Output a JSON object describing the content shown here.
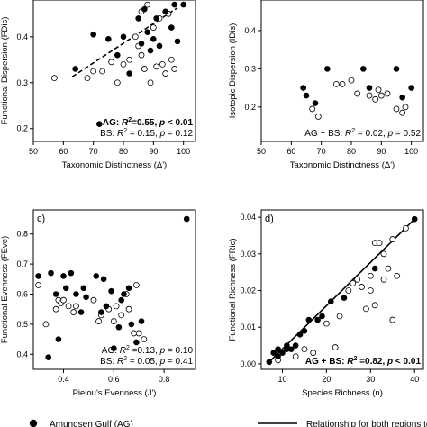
{
  "panels": [
    {
      "id": "a",
      "letter": "",
      "type": "scatter",
      "xlabel": "Taxonomic Distinctness (Δ')",
      "ylabel": "Functional Dispersion (FDis)",
      "xlim": [
        50,
        104
      ],
      "ylim": [
        0.172,
        0.48
      ],
      "xticks": [
        50,
        60,
        70,
        80,
        90,
        100
      ],
      "yticks": [
        0.2,
        0.3,
        0.4
      ],
      "ytick_labels": [
        "0.2",
        "0.3",
        "0.4"
      ],
      "stats_pos": "bottom-right",
      "stats": [
        {
          "prefix": "AG: ",
          "r2": "=0.55, ",
          "p": " < 0.01",
          "bold": true
        },
        {
          "prefix": "BS: ",
          "r2": " = 0.15, ",
          "p": " = 0.12",
          "bold": false
        }
      ],
      "fit": {
        "style": "dashed",
        "x": [
          63,
          98
        ],
        "y": [
          0.313,
          0.463
        ]
      },
      "AG": [
        [
          70,
          0.405
        ],
        [
          75,
          0.395
        ],
        [
          72,
          0.21
        ],
        [
          80,
          0.4
        ],
        [
          82,
          0.32
        ],
        [
          85,
          0.44
        ],
        [
          86,
          0.385
        ],
        [
          87,
          0.46
        ],
        [
          88,
          0.41
        ],
        [
          89,
          0.37
        ],
        [
          90,
          0.395
        ],
        [
          92,
          0.38
        ],
        [
          94,
          0.455
        ],
        [
          96,
          0.42
        ],
        [
          97,
          0.47
        ],
        [
          98,
          0.39
        ],
        [
          100,
          0.47
        ],
        [
          64,
          0.33
        ],
        [
          78,
          0.36
        ],
        [
          91,
          0.44
        ]
      ],
      "BS": [
        [
          57,
          0.31
        ],
        [
          68,
          0.31
        ],
        [
          70,
          0.325
        ],
        [
          73,
          0.325
        ],
        [
          76,
          0.345
        ],
        [
          78,
          0.3
        ],
        [
          80,
          0.34
        ],
        [
          82,
          0.35
        ],
        [
          84,
          0.4
        ],
        [
          85,
          0.38
        ],
        [
          86,
          0.36
        ],
        [
          87,
          0.33
        ],
        [
          89,
          0.3
        ],
        [
          90,
          0.42
        ],
        [
          91,
          0.335
        ],
        [
          92,
          0.44
        ],
        [
          93,
          0.34
        ],
        [
          94,
          0.32
        ],
        [
          95,
          0.45
        ],
        [
          96,
          0.35
        ],
        [
          97,
          0.33
        ],
        [
          86,
          0.455
        ],
        [
          88,
          0.47
        ]
      ]
    },
    {
      "id": "b",
      "letter": "",
      "type": "scatter",
      "xlabel": "Taxonomic Distinctness (Δ')",
      "ylabel": "Isotopic Dispersion (IDis)",
      "xlim": [
        50,
        104
      ],
      "ylim": [
        0.11,
        0.48
      ],
      "xticks": [
        50,
        60,
        70,
        80,
        90,
        100
      ],
      "yticks": [
        0.2,
        0.3,
        0.4
      ],
      "ytick_labels": [
        "0.2",
        "0.3",
        "0.4"
      ],
      "stats_pos": "bottom-right",
      "stats": [
        {
          "prefix": "AG + BS: ",
          "r2": " = 0.02, ",
          "p": " = 0.52",
          "bold": false
        }
      ],
      "fit": null,
      "AG": [
        [
          64,
          0.25
        ],
        [
          65,
          0.23
        ],
        [
          68,
          0.21
        ],
        [
          72,
          0.3
        ],
        [
          84,
          0.3
        ],
        [
          86,
          0.25
        ],
        [
          95,
          0.3
        ],
        [
          100,
          0.25
        ],
        [
          97,
          0.225
        ]
      ],
      "BS": [
        [
          67,
          0.195
        ],
        [
          69,
          0.175
        ],
        [
          75,
          0.26
        ],
        [
          77,
          0.26
        ],
        [
          80,
          0.27
        ],
        [
          82,
          0.235
        ],
        [
          86,
          0.23
        ],
        [
          88,
          0.22
        ],
        [
          89,
          0.245
        ],
        [
          90,
          0.23
        ],
        [
          92,
          0.235
        ],
        [
          95,
          0.195
        ],
        [
          97,
          0.185
        ],
        [
          98,
          0.2
        ]
      ]
    },
    {
      "id": "c",
      "letter": "c)",
      "type": "scatter",
      "xlabel": "Pielou's Evenness (J')",
      "ylabel": "Functional Evenness (FEve)",
      "xlim": [
        0.28,
        0.925
      ],
      "ylim": [
        0.35,
        0.88
      ],
      "xticks": [
        0.4,
        0.6,
        0.8
      ],
      "yticks": [
        0.4,
        0.5,
        0.6,
        0.7,
        0.8
      ],
      "ytick_labels": [
        "0.4",
        "0.5",
        "0.6",
        "0.7",
        "0.8"
      ],
      "stats_pos": "bottom-right",
      "stats": [
        {
          "prefix": "AG: ",
          "r2": " =0.13, ",
          "p": " = 0.10",
          "bold": false
        },
        {
          "prefix": "BS: ",
          "r2": " = 0.05, ",
          "p": " = 0.41",
          "bold": false
        }
      ],
      "fit": null,
      "AG": [
        [
          0.3,
          0.66
        ],
        [
          0.34,
          0.39
        ],
        [
          0.35,
          0.67
        ],
        [
          0.37,
          0.6
        ],
        [
          0.38,
          0.45
        ],
        [
          0.4,
          0.66
        ],
        [
          0.41,
          0.62
        ],
        [
          0.43,
          0.67
        ],
        [
          0.45,
          0.6
        ],
        [
          0.47,
          0.54
        ],
        [
          0.48,
          0.62
        ],
        [
          0.49,
          0.59
        ],
        [
          0.53,
          0.66
        ],
        [
          0.55,
          0.54
        ],
        [
          0.56,
          0.65
        ],
        [
          0.57,
          0.56
        ],
        [
          0.59,
          0.61
        ],
        [
          0.6,
          0.42
        ],
        [
          0.62,
          0.49
        ],
        [
          0.63,
          0.58
        ],
        [
          0.64,
          0.6
        ],
        [
          0.66,
          0.62
        ],
        [
          0.67,
          0.5
        ],
        [
          0.69,
          0.44
        ],
        [
          0.71,
          0.51
        ],
        [
          0.89,
          0.85
        ]
      ],
      "BS": [
        [
          0.3,
          0.63
        ],
        [
          0.33,
          0.5
        ],
        [
          0.37,
          0.55
        ],
        [
          0.38,
          0.58
        ],
        [
          0.39,
          0.57
        ],
        [
          0.4,
          0.58
        ],
        [
          0.42,
          0.56
        ],
        [
          0.44,
          0.54
        ],
        [
          0.45,
          0.56
        ],
        [
          0.52,
          0.58
        ],
        [
          0.54,
          0.51
        ],
        [
          0.55,
          0.53
        ],
        [
          0.58,
          0.55
        ],
        [
          0.6,
          0.51
        ],
        [
          0.61,
          0.56
        ],
        [
          0.63,
          0.53
        ],
        [
          0.65,
          0.6
        ],
        [
          0.66,
          0.55
        ],
        [
          0.68,
          0.47
        ],
        [
          0.69,
          0.63
        ],
        [
          0.7,
          0.47
        ],
        [
          0.72,
          0.45
        ]
      ]
    },
    {
      "id": "d",
      "letter": "d)",
      "type": "scatter",
      "xlabel": "Species Richness (n)",
      "ylabel": "Functional Richness (FRic)",
      "xlim": [
        5.2,
        42
      ],
      "ylim": [
        -0.0015,
        0.042
      ],
      "xticks": [
        10,
        20,
        30,
        40
      ],
      "yticks": [
        0.0,
        0.01,
        0.02,
        0.03,
        0.04
      ],
      "ytick_labels": [
        "0.00",
        "0.01",
        "0.02",
        "0.03",
        "0.04"
      ],
      "stats_pos": "bottom-right",
      "stats": [
        {
          "prefix": "AG + BS: ",
          "r2": " =0.82, ",
          "p": " < 0.01",
          "bold": true
        }
      ],
      "fit": {
        "style": "solid",
        "x": [
          7,
          40
        ],
        "y": [
          0.0005,
          0.0395
        ]
      },
      "AG": [
        [
          7,
          0.0005
        ],
        [
          8,
          0.003
        ],
        [
          9,
          0.002
        ],
        [
          10,
          0.003
        ],
        [
          11,
          0.004
        ],
        [
          12,
          0.004
        ],
        [
          13,
          0.005
        ],
        [
          14,
          0.008
        ],
        [
          15,
          0.009
        ],
        [
          16,
          0.012
        ],
        [
          18,
          0.012
        ],
        [
          19,
          0.013
        ],
        [
          21,
          0.017
        ],
        [
          24,
          0.018
        ],
        [
          31,
          0.026
        ],
        [
          40,
          0.0395
        ],
        [
          9,
          0.004
        ],
        [
          11,
          0.005
        ]
      ],
      "BS": [
        [
          9,
          0.001
        ],
        [
          13,
          0.002
        ],
        [
          15,
          0.004
        ],
        [
          17,
          0.003
        ],
        [
          20,
          0.011
        ],
        [
          22,
          0.0045
        ],
        [
          23,
          0.013
        ],
        [
          25,
          0.02
        ],
        [
          26,
          0.022
        ],
        [
          27,
          0.023
        ],
        [
          28,
          0.021
        ],
        [
          29,
          0.015
        ],
        [
          30,
          0.024
        ],
        [
          31,
          0.016
        ],
        [
          31,
          0.033
        ],
        [
          32,
          0.033
        ],
        [
          33,
          0.03
        ],
        [
          33,
          0.023
        ],
        [
          34,
          0.026
        ],
        [
          35,
          0.012
        ],
        [
          35,
          0.034
        ],
        [
          36,
          0.024
        ],
        [
          38,
          0.037
        ],
        [
          30,
          0.02
        ]
      ]
    }
  ],
  "legend": {
    "ag_label": "Amundsen Gulf (AG)",
    "line_label": "Relationship for both regions together"
  }
}
